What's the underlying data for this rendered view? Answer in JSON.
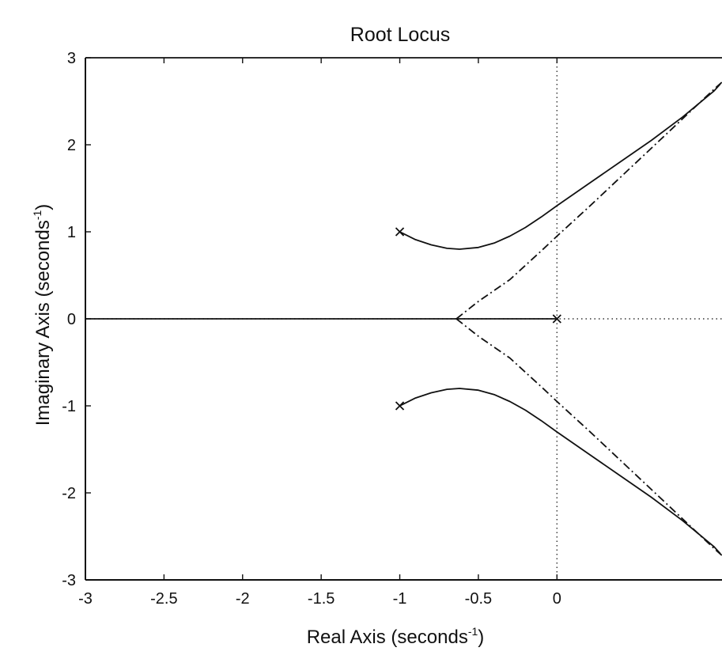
{
  "chart_data": {
    "type": "line",
    "title": "Root Locus",
    "xlabel": {
      "prefix": "Real Axis (seconds",
      "sup": "-1",
      "suffix": ")"
    },
    "ylabel": {
      "prefix": "Imaginary Axis (seconds",
      "sup": "-1",
      "suffix": ")"
    },
    "xlim": [
      -3,
      1.05
    ],
    "ylim": [
      -3,
      3
    ],
    "xticks": [
      -3,
      -2.5,
      -2,
      -1.5,
      -1,
      -0.5,
      0
    ],
    "xtick_labels": [
      "-3",
      "-2.5",
      "-2",
      "-1.5",
      "-1",
      "-0.5",
      "0"
    ],
    "yticks": [
      -3,
      -2,
      -1,
      0,
      1,
      2,
      3
    ],
    "ytick_labels": [
      "-3",
      "-2",
      "-1",
      "0",
      "1",
      "2",
      "3"
    ],
    "grid": false,
    "reference_lines": {
      "x": 0,
      "y": 0,
      "style": "dotted"
    },
    "poles": [
      {
        "x": -1,
        "y": 1
      },
      {
        "x": -1,
        "y": -1
      },
      {
        "x": 0,
        "y": 0
      }
    ],
    "series": [
      {
        "style": "solid",
        "x": [
          -1.0,
          -0.9,
          -0.8,
          -0.7,
          -0.62,
          -0.5,
          -0.4,
          -0.3,
          -0.2,
          -0.1,
          0.0,
          0.2,
          0.4,
          0.6,
          0.8,
          1.0,
          1.04
        ],
        "y": [
          1.0,
          0.91,
          0.85,
          0.81,
          0.8,
          0.82,
          0.87,
          0.95,
          1.05,
          1.17,
          1.3,
          1.55,
          1.8,
          2.05,
          2.32,
          2.62,
          2.7
        ]
      },
      {
        "style": "solid",
        "x": [
          -1.0,
          -0.9,
          -0.8,
          -0.7,
          -0.62,
          -0.5,
          -0.4,
          -0.3,
          -0.2,
          -0.1,
          0.0,
          0.2,
          0.4,
          0.6,
          0.8,
          1.0,
          1.04
        ],
        "y": [
          -1.0,
          -0.91,
          -0.85,
          -0.81,
          -0.8,
          -0.82,
          -0.87,
          -0.95,
          -1.05,
          -1.17,
          -1.3,
          -1.55,
          -1.8,
          -2.05,
          -2.32,
          -2.62,
          -2.7
        ]
      },
      {
        "style": "solid",
        "x": [
          -3.0,
          -2.5,
          -2.0,
          -1.5,
          -1.0,
          -0.65,
          -0.5,
          -0.25,
          0.0
        ],
        "y": [
          0.0,
          0.0,
          0.0,
          0.0,
          0.0,
          0.0,
          0.0,
          0.0,
          0.0
        ]
      },
      {
        "style": "dash-dot",
        "x": [
          -0.64,
          -0.5,
          -0.3,
          -0.1,
          0.0,
          0.2,
          0.4,
          0.6,
          0.8,
          1.0,
          1.05
        ],
        "y": [
          0.0,
          0.2,
          0.45,
          0.78,
          0.95,
          1.28,
          1.62,
          1.96,
          2.3,
          2.64,
          2.72
        ]
      },
      {
        "style": "dash-dot",
        "x": [
          -0.64,
          -0.5,
          -0.3,
          -0.1,
          0.0,
          0.2,
          0.4,
          0.6,
          0.8,
          1.0,
          1.05
        ],
        "y": [
          0.0,
          -0.2,
          -0.45,
          -0.78,
          -0.95,
          -1.28,
          -1.62,
          -1.96,
          -2.3,
          -2.64,
          -2.72
        ]
      }
    ]
  }
}
